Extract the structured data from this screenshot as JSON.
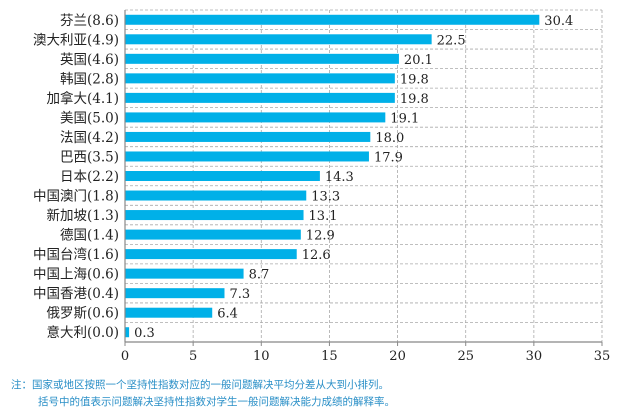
{
  "chart_data": {
    "type": "bar",
    "orientation": "horizontal",
    "categories": [
      "芬兰(8.6)",
      "澳大利亚(4.9)",
      "英国(4.6)",
      "韩国(2.8)",
      "加拿大(4.1)",
      "美国(5.0)",
      "法国(4.2)",
      "巴西(3.5)",
      "日本(2.2)",
      "中国澳门(1.8)",
      "新加坡(1.3)",
      "德国(1.4)",
      "中国台湾(1.6)",
      "中国上海(0.6)",
      "中国香港(0.4)",
      "俄罗斯(0.6)",
      "意大利(0.0)"
    ],
    "values": [
      30.4,
      22.5,
      20.1,
      19.8,
      19.8,
      19.1,
      18.0,
      17.9,
      14.3,
      13.3,
      13.1,
      12.9,
      12.6,
      8.7,
      7.3,
      6.4,
      0.3
    ],
    "value_labels": [
      "30.4",
      "22.5",
      "20.1",
      "19.8",
      "19.8",
      "19.1",
      "18.0",
      "17.9",
      "14.3",
      "13.3",
      "13.1",
      "12.9",
      "12.6",
      "8.7",
      "7.3",
      "6.4",
      "0.3"
    ],
    "xlim": [
      0,
      35
    ],
    "xticks": [
      "0",
      "5",
      "10",
      "15",
      "20",
      "25",
      "30",
      "35"
    ],
    "grid": true,
    "bar_color": "#00b0e8",
    "title": "",
    "xlabel": "",
    "ylabel": ""
  },
  "notes": {
    "line1": "注：国家或地区按照一个坚持性指数对应的一般问题解决平均分差从大到小排列。",
    "line2": "括号中的值表示问题解决坚持性指数对学生一般问题解决能力成绩的解释率。"
  }
}
